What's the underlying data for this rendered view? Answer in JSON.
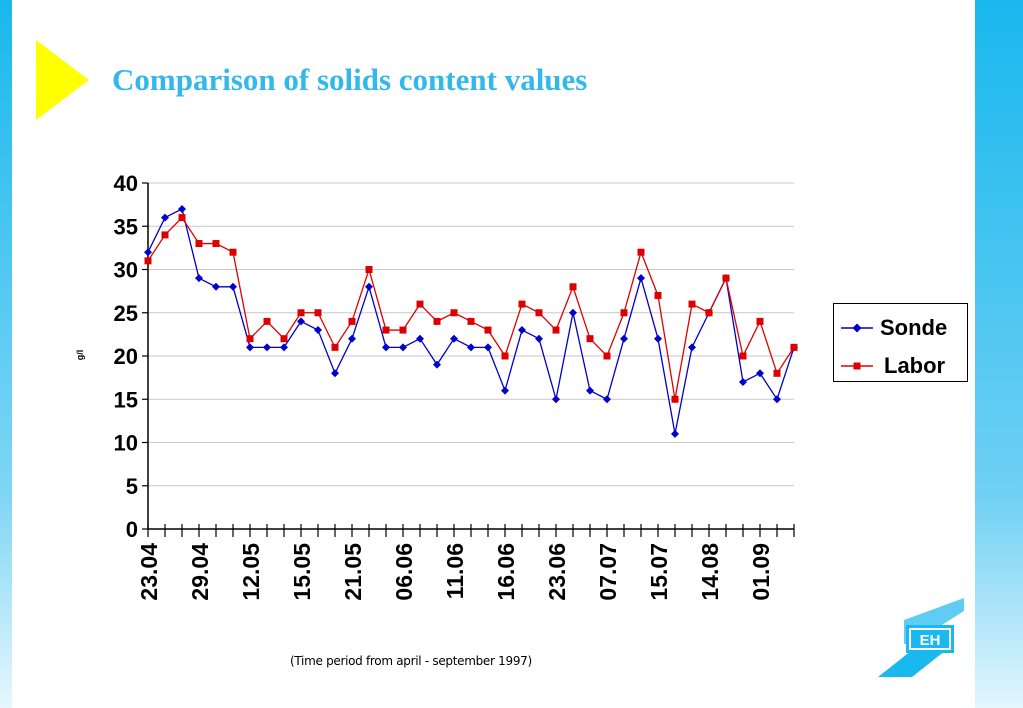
{
  "slide": {
    "title": "Comparison of solids content values",
    "footnote": "(Time period from april - september 1997)"
  },
  "colors": {
    "title": "#33b8ec",
    "accent_triangle": "#ffff00",
    "side_bars": "#19b8ee",
    "sonde": "#0000cc",
    "labor": "#dd0000"
  },
  "logo": {
    "icon": "eh-logo-icon",
    "text": "EH"
  },
  "chart_data": {
    "type": "line",
    "title": "",
    "ylabel": "g/l",
    "xlabel": "",
    "ylim": [
      0,
      40
    ],
    "yticks": [
      0,
      5,
      10,
      15,
      20,
      25,
      30,
      35,
      40
    ],
    "x_tick_labels": [
      "23.04",
      "29.04",
      "12.05",
      "15.05",
      "21.05",
      "06.06",
      "11.06",
      "16.06",
      "23.06",
      "07.07",
      "15.07",
      "14.08",
      "01.09"
    ],
    "x_tick_label_positions": [
      0,
      3,
      6,
      9,
      12,
      15,
      18,
      21,
      24,
      27,
      30,
      33,
      36
    ],
    "n_points": 39,
    "grid": "horizontal",
    "legend_position": "right",
    "series": [
      {
        "name": "Sonde",
        "marker": "diamond",
        "color": "#0000cc",
        "values": [
          32,
          36,
          37,
          29,
          28,
          28,
          21,
          21,
          21,
          24,
          23,
          18,
          22,
          28,
          21,
          21,
          22,
          19,
          22,
          21,
          21,
          16,
          23,
          22,
          15,
          25,
          16,
          15,
          22,
          29,
          22,
          11,
          21,
          25,
          29,
          17,
          18,
          15,
          21
        ]
      },
      {
        "name": "Labor",
        "marker": "square",
        "color": "#dd0000",
        "values": [
          31,
          34,
          36,
          33,
          33,
          32,
          22,
          24,
          22,
          25,
          25,
          21,
          24,
          30,
          23,
          23,
          26,
          24,
          25,
          24,
          23,
          20,
          26,
          25,
          23,
          28,
          22,
          20,
          25,
          32,
          27,
          15,
          26,
          25,
          29,
          20,
          24,
          18,
          21
        ]
      }
    ]
  }
}
